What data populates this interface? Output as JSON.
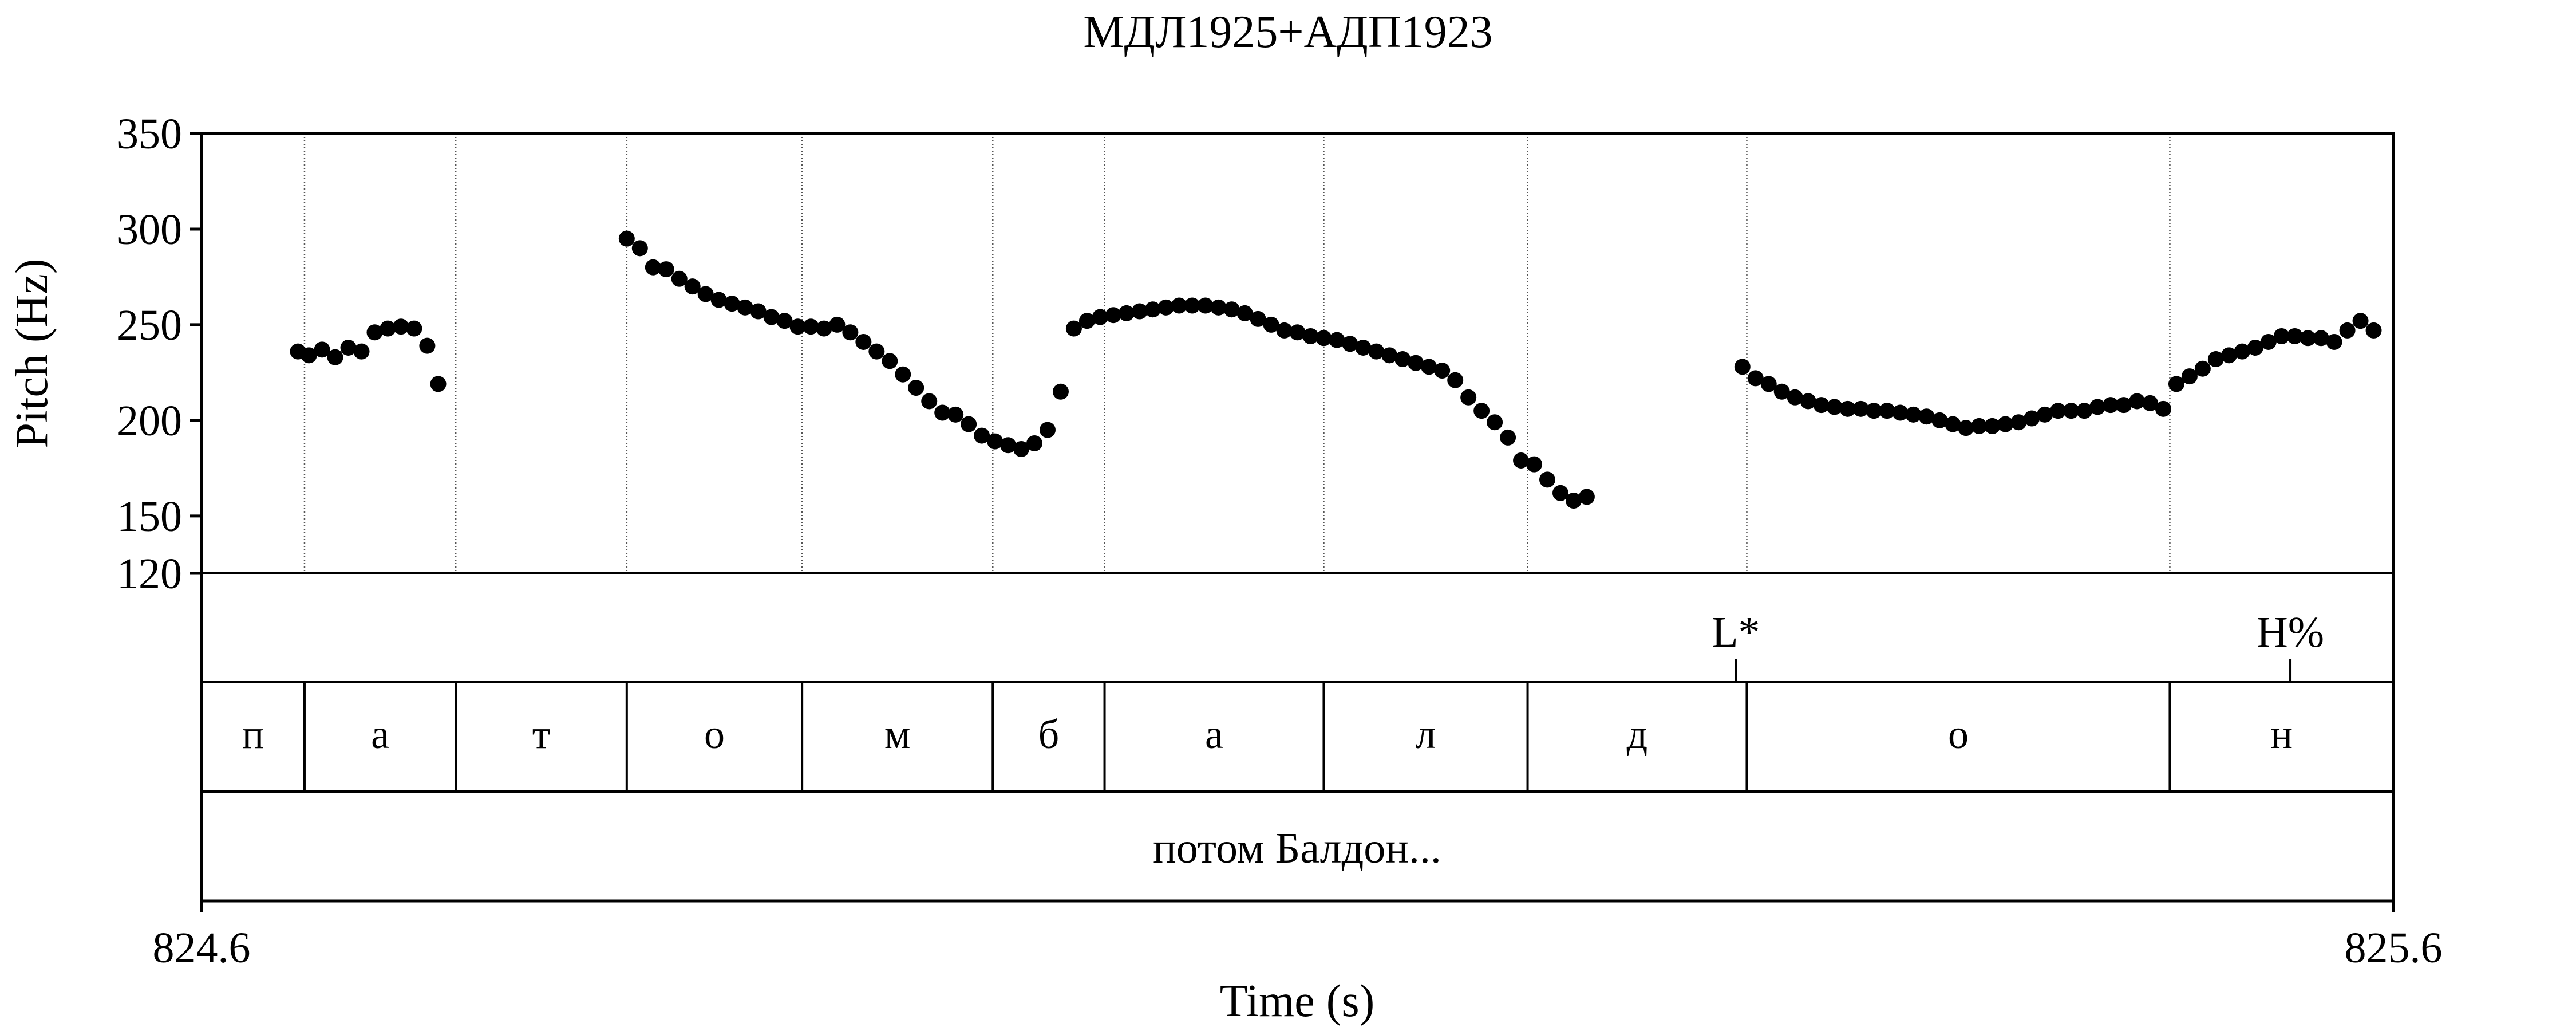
{
  "chart_data": {
    "type": "scatter",
    "title": "МДЛ1925+АДП1923",
    "xlabel": "Time (s)",
    "ylabel": "Pitch (Hz)",
    "xlim": [
      824.6,
      825.6
    ],
    "ylim": [
      120,
      350
    ],
    "x_tick_labels": [
      "824.6",
      "825.6"
    ],
    "y_ticks": [
      120,
      150,
      200,
      250,
      300,
      350
    ],
    "series": [
      {
        "points": [
          [
            824.644,
            236
          ],
          [
            824.649,
            234
          ],
          [
            824.655,
            237
          ],
          [
            824.661,
            233
          ],
          [
            824.667,
            238
          ],
          [
            824.673,
            236
          ],
          [
            824.679,
            246
          ],
          [
            824.685,
            248
          ],
          [
            824.691,
            249
          ],
          [
            824.697,
            248
          ],
          [
            824.703,
            239
          ],
          [
            824.708,
            219
          ],
          [
            824.794,
            295
          ],
          [
            824.8,
            290
          ],
          [
            824.806,
            280
          ],
          [
            824.812,
            279
          ],
          [
            824.818,
            274
          ],
          [
            824.824,
            270
          ],
          [
            824.83,
            266
          ],
          [
            824.836,
            263
          ],
          [
            824.842,
            261
          ],
          [
            824.848,
            259
          ],
          [
            824.854,
            257
          ],
          [
            824.86,
            254
          ],
          [
            824.866,
            252
          ],
          [
            824.872,
            249
          ],
          [
            824.878,
            249
          ],
          [
            824.884,
            248
          ],
          [
            824.89,
            250
          ],
          [
            824.896,
            246
          ],
          [
            824.902,
            241
          ],
          [
            824.908,
            236
          ],
          [
            824.914,
            231
          ],
          [
            824.92,
            224
          ],
          [
            824.926,
            217
          ],
          [
            824.932,
            210
          ],
          [
            824.938,
            204
          ],
          [
            824.944,
            203
          ],
          [
            824.95,
            198
          ],
          [
            824.956,
            192
          ],
          [
            824.962,
            189
          ],
          [
            824.968,
            187
          ],
          [
            824.974,
            185
          ],
          [
            824.98,
            188
          ],
          [
            824.986,
            195
          ],
          [
            824.992,
            215
          ],
          [
            824.998,
            248
          ],
          [
            825.004,
            252
          ],
          [
            825.01,
            254
          ],
          [
            825.016,
            255
          ],
          [
            825.022,
            256
          ],
          [
            825.028,
            257
          ],
          [
            825.034,
            258
          ],
          [
            825.04,
            259
          ],
          [
            825.046,
            260
          ],
          [
            825.052,
            260
          ],
          [
            825.058,
            260
          ],
          [
            825.064,
            259
          ],
          [
            825.07,
            258
          ],
          [
            825.076,
            256
          ],
          [
            825.082,
            253
          ],
          [
            825.088,
            250
          ],
          [
            825.094,
            247
          ],
          [
            825.1,
            246
          ],
          [
            825.106,
            244
          ],
          [
            825.112,
            243
          ],
          [
            825.118,
            242
          ],
          [
            825.124,
            240
          ],
          [
            825.13,
            238
          ],
          [
            825.136,
            236
          ],
          [
            825.142,
            234
          ],
          [
            825.148,
            232
          ],
          [
            825.154,
            230
          ],
          [
            825.16,
            228
          ],
          [
            825.166,
            226
          ],
          [
            825.172,
            221
          ],
          [
            825.178,
            212
          ],
          [
            825.184,
            205
          ],
          [
            825.19,
            199
          ],
          [
            825.196,
            191
          ],
          [
            825.202,
            179
          ],
          [
            825.208,
            177
          ],
          [
            825.214,
            169
          ],
          [
            825.22,
            162
          ],
          [
            825.226,
            158
          ],
          [
            825.232,
            160
          ],
          [
            825.303,
            228
          ],
          [
            825.309,
            222
          ],
          [
            825.315,
            219
          ],
          [
            825.321,
            215
          ],
          [
            825.327,
            212
          ],
          [
            825.333,
            210
          ],
          [
            825.339,
            208
          ],
          [
            825.345,
            207
          ],
          [
            825.351,
            206
          ],
          [
            825.357,
            206
          ],
          [
            825.363,
            205
          ],
          [
            825.369,
            205
          ],
          [
            825.375,
            204
          ],
          [
            825.381,
            203
          ],
          [
            825.387,
            202
          ],
          [
            825.393,
            200
          ],
          [
            825.399,
            198
          ],
          [
            825.405,
            196
          ],
          [
            825.411,
            197
          ],
          [
            825.417,
            197
          ],
          [
            825.423,
            198
          ],
          [
            825.429,
            199
          ],
          [
            825.435,
            201
          ],
          [
            825.441,
            203
          ],
          [
            825.447,
            205
          ],
          [
            825.453,
            205
          ],
          [
            825.459,
            205
          ],
          [
            825.465,
            207
          ],
          [
            825.471,
            208
          ],
          [
            825.477,
            208
          ],
          [
            825.483,
            210
          ],
          [
            825.489,
            209
          ],
          [
            825.495,
            206
          ],
          [
            825.501,
            219
          ],
          [
            825.507,
            223
          ],
          [
            825.513,
            227
          ],
          [
            825.519,
            232
          ],
          [
            825.525,
            234
          ],
          [
            825.531,
            236
          ],
          [
            825.537,
            238
          ],
          [
            825.543,
            241
          ],
          [
            825.549,
            244
          ],
          [
            825.555,
            244
          ],
          [
            825.561,
            243
          ],
          [
            825.567,
            243
          ],
          [
            825.573,
            241
          ],
          [
            825.579,
            247
          ],
          [
            825.585,
            252
          ],
          [
            825.591,
            247
          ]
        ]
      }
    ],
    "grid": false,
    "legend": "none"
  },
  "tiers": {
    "tones": {
      "boundaries": [
        825.3,
        825.553
      ],
      "labels": [
        "L*",
        "H%"
      ]
    },
    "segments": {
      "boundaries": [
        824.6,
        824.647,
        824.716,
        824.794,
        824.874,
        824.961,
        825.012,
        825.112,
        825.205,
        825.305,
        825.498,
        825.6
      ],
      "labels": [
        "п",
        "а",
        "т",
        "о",
        "м",
        "б",
        "а",
        "л",
        "д",
        "о",
        "н"
      ]
    },
    "phrase": {
      "label": "потом Балдон..."
    }
  }
}
